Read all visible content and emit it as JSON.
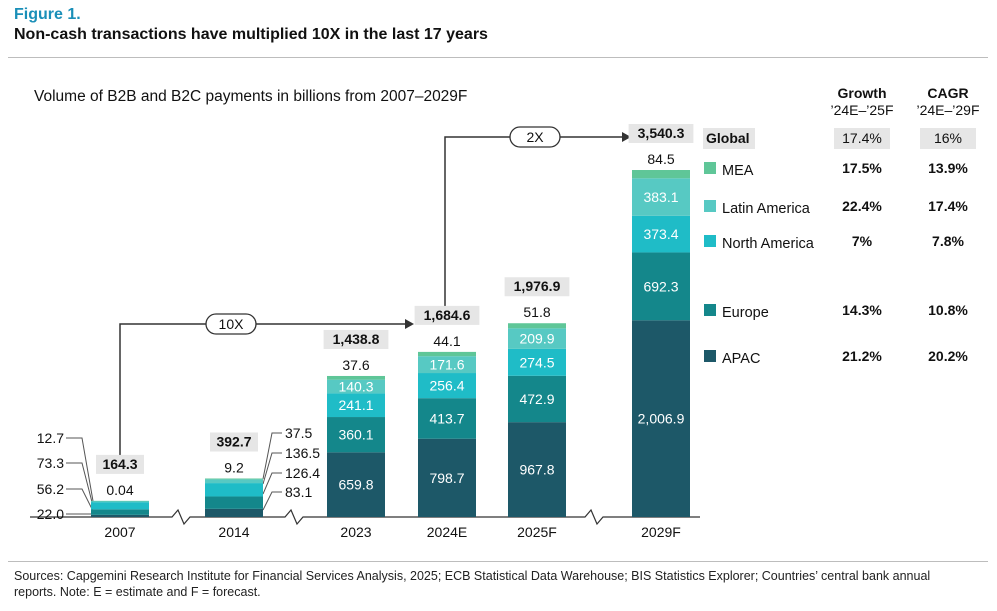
{
  "figure_label": "Figure 1.",
  "figure_title": "Non-cash transactions have multiplied 10X in the last 17 years",
  "footer": "Sources: Capgemini Research Institute for Financial Services Analysis, 2025; ECB Statistical Data Warehouse; BIS Statistics Explorer; Countries’ central bank annual reports. Note: E = estimate and F = forecast.",
  "colors": {
    "APAC": "#1d5868",
    "Europe": "#14878b",
    "North America": "#1fbcc7",
    "Latin America": "#57c9c3",
    "MEA": "#5fc698"
  },
  "chart_data": {
    "type": "bar",
    "stacked": true,
    "title": "Volume of B2B and B2C payments in billions from 2007–2029F",
    "categories": [
      "2007",
      "2014",
      "2023",
      "2024E",
      "2025F",
      "2029F"
    ],
    "totals": [
      "164.3",
      "392.7",
      "1,438.8",
      "1,684.6",
      "1,976.9",
      "3,540.3"
    ],
    "series": [
      {
        "name": "APAC",
        "values": [
          22.0,
          83.1,
          659.8,
          798.7,
          967.8,
          2006.9
        ],
        "labels": [
          "22.0",
          "83.1",
          "659.8",
          "798.7",
          "967.8",
          "2,006.9"
        ]
      },
      {
        "name": "Europe",
        "values": [
          56.2,
          126.4,
          360.1,
          413.7,
          472.9,
          692.3
        ],
        "labels": [
          "56.2",
          "126.4",
          "360.1",
          "413.7",
          "472.9",
          "692.3"
        ]
      },
      {
        "name": "North America",
        "values": [
          73.3,
          136.5,
          241.1,
          256.4,
          274.5,
          373.4
        ],
        "labels": [
          "73.3",
          "136.5",
          "241.1",
          "256.4",
          "274.5",
          "373.4"
        ]
      },
      {
        "name": "Latin America",
        "values": [
          12.7,
          37.5,
          140.3,
          171.6,
          209.9,
          383.1
        ],
        "labels": [
          "12.7",
          "37.5",
          "140.3",
          "171.6",
          "209.9",
          "383.1"
        ]
      },
      {
        "name": "MEA",
        "values": [
          0.04,
          9.2,
          37.6,
          44.1,
          51.8,
          84.5
        ],
        "labels": [
          "0.04",
          "9.2",
          "37.6",
          "44.1",
          "51.8",
          "84.5"
        ]
      }
    ],
    "annotations": {
      "growth_2007_2024": "10X",
      "growth_2024_2029": "2X"
    },
    "table": {
      "header_growth": [
        "Growth",
        "’24E–’25F"
      ],
      "header_cagr": [
        "CAGR",
        "’24E–’29F"
      ],
      "rows": [
        {
          "name": "Global",
          "growth": "17.4%",
          "cagr": "16%"
        },
        {
          "name": "MEA",
          "growth": "17.5%",
          "cagr": "13.9%"
        },
        {
          "name": "Latin America",
          "growth": "22.4%",
          "cagr": "17.4%"
        },
        {
          "name": "North America",
          "growth": "7%",
          "cagr": "7.8%"
        },
        {
          "name": "Europe",
          "growth": "14.3%",
          "cagr": "10.8%"
        },
        {
          "name": "APAC",
          "growth": "21.2%",
          "cagr": "20.2%"
        }
      ]
    }
  }
}
